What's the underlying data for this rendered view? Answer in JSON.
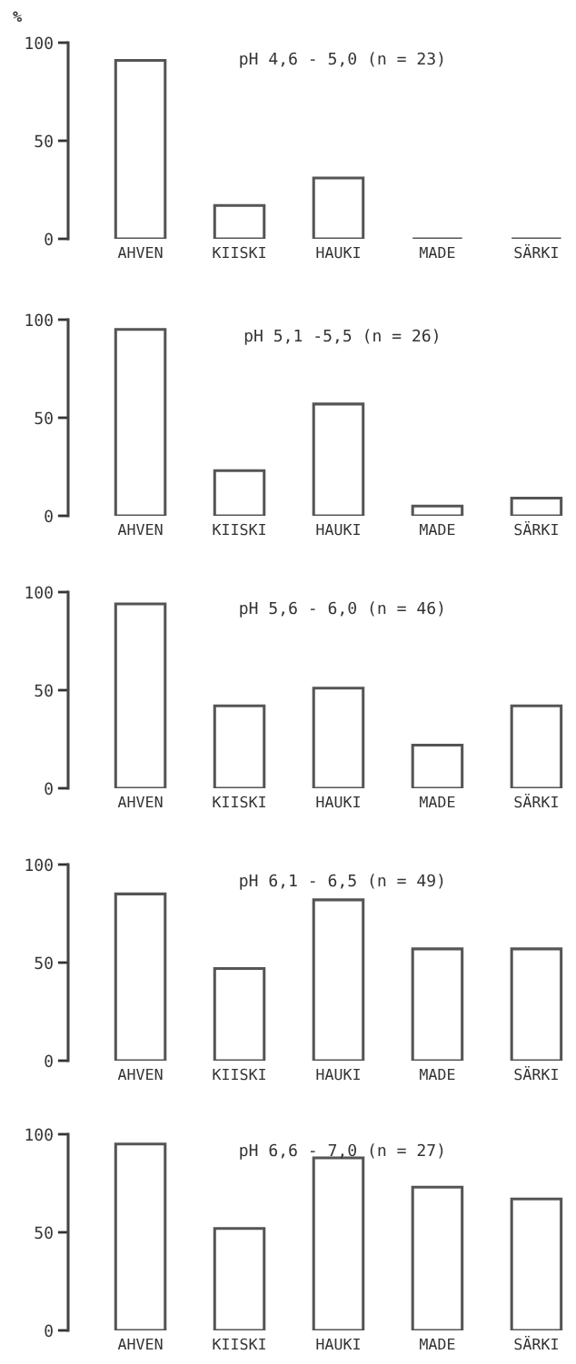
{
  "chart_data": [
    {
      "type": "bar",
      "title": "pH 4,6 - 5,0 (n = 23)",
      "ylabel": "%",
      "categories": [
        "AHVEN",
        "KIISKI",
        "HAUKI",
        "MADE",
        "SÄRKI"
      ],
      "values": [
        91,
        17,
        31,
        0,
        0
      ],
      "color": "#555555",
      "ylim": [
        0,
        100
      ],
      "yticks": [
        0,
        50,
        100
      ]
    },
    {
      "type": "bar",
      "title": "pH 5,1 -5,5 (n = 26)",
      "categories": [
        "AHVEN",
        "KIISKI",
        "HAUKI",
        "MADE",
        "SÄRKI"
      ],
      "values": [
        95,
        23,
        57,
        5,
        9
      ],
      "color": "#555555",
      "ylim": [
        0,
        100
      ],
      "yticks": [
        0,
        50,
        100
      ]
    },
    {
      "type": "bar",
      "title": "pH 5,6 - 6,0 (n = 46)",
      "categories": [
        "AHVEN",
        "KIISKI",
        "HAUKI",
        "MADE",
        "SÄRKI"
      ],
      "values": [
        94,
        42,
        51,
        22,
        42
      ],
      "color": "#555555",
      "ylim": [
        0,
        100
      ],
      "yticks": [
        0,
        50,
        100
      ]
    },
    {
      "type": "bar",
      "title": "pH 6,1 - 6,5 (n = 49)",
      "categories": [
        "AHVEN",
        "KIISKI",
        "HAUKI",
        "MADE",
        "SÄRKI"
      ],
      "values": [
        85,
        47,
        82,
        57,
        57
      ],
      "color": "#555555",
      "ylim": [
        0,
        100
      ],
      "yticks": [
        0,
        50,
        100
      ]
    },
    {
      "type": "bar",
      "title": "pH 6,6 - 7,0 (n = 27)",
      "categories": [
        "AHVEN",
        "KIISKI",
        "HAUKI",
        "MADE",
        "SÄRKI"
      ],
      "values": [
        95,
        52,
        88,
        73,
        67
      ],
      "color": "#555555",
      "ylim": [
        0,
        100
      ],
      "yticks": [
        0,
        50,
        100
      ]
    }
  ]
}
